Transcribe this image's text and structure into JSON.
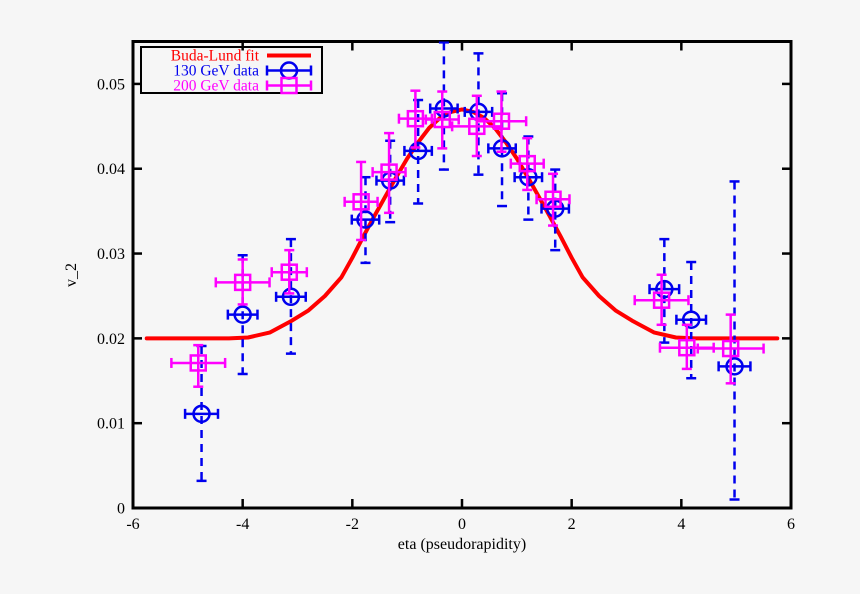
{
  "figure": {
    "background": "#f6f6f6",
    "border_color": "#000000"
  },
  "chart_data": {
    "type": "scatter",
    "title": "",
    "xlabel": "eta (pseudorapidity)",
    "ylabel": "v_2",
    "xlim": [
      -6,
      6
    ],
    "ylim": [
      0,
      0.055
    ],
    "xticks": [
      -6,
      -4,
      -2,
      0,
      2,
      4,
      6
    ],
    "xtick_labels": [
      "-6",
      "-4",
      "-2",
      "0",
      "2",
      "4",
      "6"
    ],
    "yticks": [
      0,
      0.01,
      0.02,
      0.03,
      0.04,
      0.05
    ],
    "ytick_labels": [
      "0",
      "0.01",
      "0.02",
      "0.03",
      "0.04",
      "0.05"
    ],
    "grid": false,
    "legend": {
      "position": "top-left",
      "border": true
    },
    "series": [
      {
        "name": "Buda-Lund fit",
        "type": "line",
        "color": "#ff0000",
        "line_width": 4,
        "points": [
          [
            -5.75,
            0.02
          ],
          [
            -5.25,
            0.02
          ],
          [
            -4.75,
            0.02
          ],
          [
            -4.25,
            0.02
          ],
          [
            -3.9,
            0.0201
          ],
          [
            -3.5,
            0.0207
          ],
          [
            -3.1,
            0.0221
          ],
          [
            -2.8,
            0.0233
          ],
          [
            -2.5,
            0.025
          ],
          [
            -2.2,
            0.0272
          ],
          [
            -2.0,
            0.0295
          ],
          [
            -1.8,
            0.032
          ],
          [
            -1.6,
            0.0344
          ],
          [
            -1.4,
            0.0367
          ],
          [
            -1.2,
            0.039
          ],
          [
            -1.0,
            0.0412
          ],
          [
            -0.8,
            0.0431
          ],
          [
            -0.6,
            0.0448
          ],
          [
            -0.4,
            0.046
          ],
          [
            -0.2,
            0.0467
          ],
          [
            0.0,
            0.047
          ],
          [
            0.2,
            0.0467
          ],
          [
            0.4,
            0.046
          ],
          [
            0.6,
            0.0448
          ],
          [
            0.8,
            0.0431
          ],
          [
            1.0,
            0.0412
          ],
          [
            1.2,
            0.039
          ],
          [
            1.4,
            0.0367
          ],
          [
            1.6,
            0.0344
          ],
          [
            1.8,
            0.032
          ],
          [
            2.0,
            0.0295
          ],
          [
            2.2,
            0.0272
          ],
          [
            2.5,
            0.025
          ],
          [
            2.8,
            0.0233
          ],
          [
            3.1,
            0.0221
          ],
          [
            3.5,
            0.0207
          ],
          [
            3.9,
            0.0201
          ],
          [
            4.25,
            0.02
          ],
          [
            4.75,
            0.02
          ],
          [
            5.25,
            0.02
          ],
          [
            5.75,
            0.02
          ]
        ]
      },
      {
        "name": "130 GeV data",
        "type": "errorbar-scatter",
        "marker": "open-circle",
        "color": "#0000ee",
        "yerr_line": "dashed",
        "points": [
          {
            "eta": -4.75,
            "v2": 0.0111,
            "xerr": 0.3,
            "yerr_plus": 0.008,
            "yerr_minus": 0.0079
          },
          {
            "eta": -4.0,
            "v2": 0.0228,
            "xerr": 0.27,
            "yerr_plus": 0.007,
            "yerr_minus": 0.007
          },
          {
            "eta": -3.12,
            "v2": 0.0249,
            "xerr": 0.27,
            "yerr_plus": 0.0068,
            "yerr_minus": 0.0067
          },
          {
            "eta": -1.76,
            "v2": 0.034,
            "xerr": 0.25,
            "yerr_plus": 0.005,
            "yerr_minus": 0.0051
          },
          {
            "eta": -1.31,
            "v2": 0.0386,
            "xerr": 0.25,
            "yerr_plus": 0.0047,
            "yerr_minus": 0.0049
          },
          {
            "eta": -0.8,
            "v2": 0.0421,
            "xerr": 0.25,
            "yerr_plus": 0.006,
            "yerr_minus": 0.0062
          },
          {
            "eta": -0.33,
            "v2": 0.0471,
            "xerr": 0.25,
            "yerr_plus": 0.0078,
            "yerr_minus": 0.0072
          },
          {
            "eta": 0.3,
            "v2": 0.0467,
            "xerr": 0.25,
            "yerr_plus": 0.0069,
            "yerr_minus": 0.0074
          },
          {
            "eta": 0.73,
            "v2": 0.0424,
            "xerr": 0.25,
            "yerr_plus": 0.0065,
            "yerr_minus": 0.0068
          },
          {
            "eta": 1.21,
            "v2": 0.039,
            "xerr": 0.25,
            "yerr_plus": 0.0048,
            "yerr_minus": 0.005
          },
          {
            "eta": 1.7,
            "v2": 0.0353,
            "xerr": 0.25,
            "yerr_plus": 0.0046,
            "yerr_minus": 0.0049
          },
          {
            "eta": 3.69,
            "v2": 0.0258,
            "xerr": 0.27,
            "yerr_plus": 0.0059,
            "yerr_minus": 0.0063
          },
          {
            "eta": 4.18,
            "v2": 0.0222,
            "xerr": 0.27,
            "yerr_plus": 0.0068,
            "yerr_minus": 0.0069
          },
          {
            "eta": 4.97,
            "v2": 0.0167,
            "xerr": 0.29,
            "yerr_plus": 0.0218,
            "yerr_minus": 0.0157
          }
        ]
      },
      {
        "name": "200 GeV data",
        "type": "errorbar-scatter",
        "marker": "open-square",
        "color": "#ff00ff",
        "yerr_line": "solid",
        "points": [
          {
            "eta": -4.81,
            "v2": 0.0171,
            "xerr": 0.49,
            "yerr_plus": 0.0021,
            "yerr_minus": 0.0028
          },
          {
            "eta": -4.0,
            "v2": 0.0266,
            "xerr": 0.49,
            "yerr_plus": 0.0027,
            "yerr_minus": 0.0026
          },
          {
            "eta": -3.15,
            "v2": 0.0278,
            "xerr": 0.32,
            "yerr_plus": 0.0026,
            "yerr_minus": 0.0025
          },
          {
            "eta": -1.84,
            "v2": 0.0361,
            "xerr": 0.3,
            "yerr_plus": 0.0047,
            "yerr_minus": 0.0045
          },
          {
            "eta": -1.33,
            "v2": 0.0396,
            "xerr": 0.3,
            "yerr_plus": 0.0046,
            "yerr_minus": 0.0048
          },
          {
            "eta": -0.85,
            "v2": 0.0459,
            "xerr": 0.3,
            "yerr_plus": 0.0033,
            "yerr_minus": 0.0034
          },
          {
            "eta": -0.36,
            "v2": 0.0458,
            "xerr": 0.3,
            "yerr_plus": 0.0033,
            "yerr_minus": 0.0034
          },
          {
            "eta": 0.27,
            "v2": 0.045,
            "xerr": 0.45,
            "yerr_plus": 0.0036,
            "yerr_minus": 0.0035
          },
          {
            "eta": 0.72,
            "v2": 0.0456,
            "xerr": 0.45,
            "yerr_plus": 0.0035,
            "yerr_minus": 0.0036
          },
          {
            "eta": 1.19,
            "v2": 0.0406,
            "xerr": 0.3,
            "yerr_plus": 0.003,
            "yerr_minus": 0.0031
          },
          {
            "eta": 1.66,
            "v2": 0.0364,
            "xerr": 0.3,
            "yerr_plus": 0.003,
            "yerr_minus": 0.0031
          },
          {
            "eta": 3.64,
            "v2": 0.0245,
            "xerr": 0.49,
            "yerr_plus": 0.003,
            "yerr_minus": 0.0029
          },
          {
            "eta": 4.1,
            "v2": 0.0189,
            "xerr": 0.49,
            "yerr_plus": 0.0027,
            "yerr_minus": 0.0025
          },
          {
            "eta": 4.9,
            "v2": 0.0188,
            "xerr": 0.6,
            "yerr_plus": 0.004,
            "yerr_minus": 0.0041
          }
        ]
      }
    ]
  }
}
